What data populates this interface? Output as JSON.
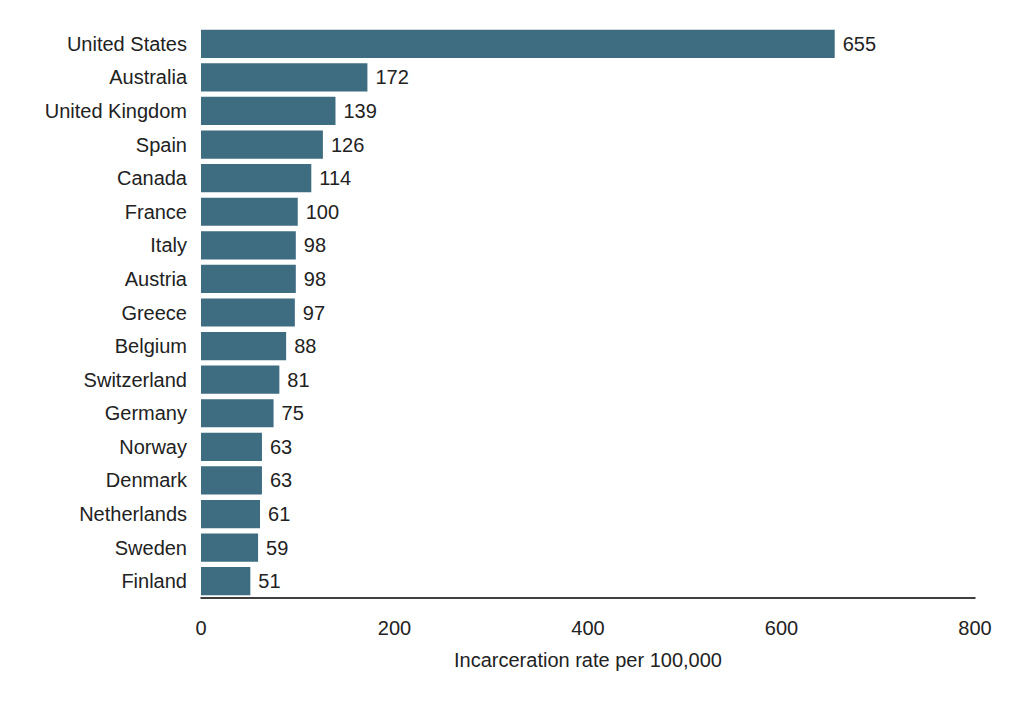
{
  "chart_data": {
    "type": "bar",
    "orientation": "horizontal",
    "categories": [
      "United States",
      "Australia",
      "United Kingdom",
      "Spain",
      "Canada",
      "France",
      "Italy",
      "Austria",
      "Greece",
      "Belgium",
      "Switzerland",
      "Germany",
      "Norway",
      "Denmark",
      "Netherlands",
      "Sweden",
      "Finland"
    ],
    "values": [
      655,
      172,
      139,
      126,
      114,
      100,
      98,
      98,
      97,
      88,
      81,
      75,
      63,
      63,
      61,
      59,
      51
    ],
    "color": "#3e6d82",
    "xlabel": "Incarceration rate per 100,000",
    "xlim": [
      0,
      800
    ],
    "xticks": [
      0,
      200,
      400,
      600,
      800
    ],
    "data_labels": true,
    "grid": false
  }
}
